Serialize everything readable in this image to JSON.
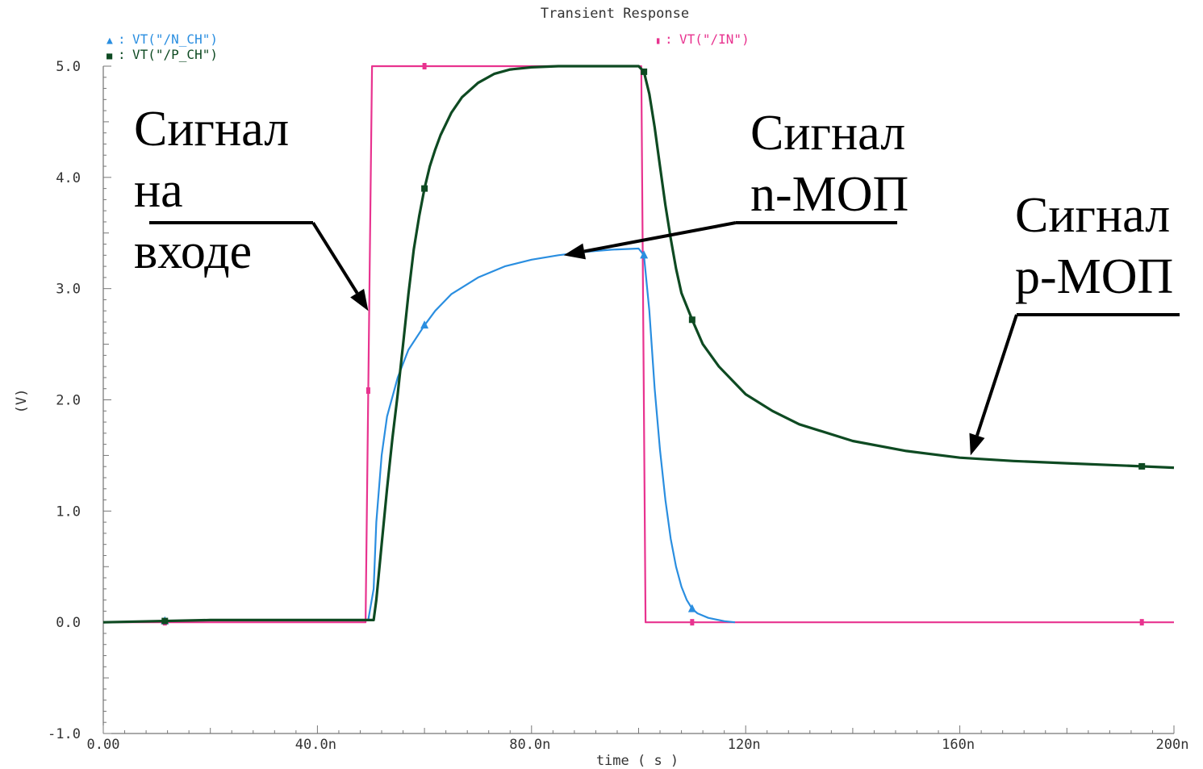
{
  "chart_data": {
    "type": "line",
    "title": "Transient Response",
    "xlabel": "time ( s )",
    "ylabel": "(V)",
    "xlim": [
      0,
      200
    ],
    "ylim": [
      -1.0,
      5.0
    ],
    "x_unit": "ns",
    "x_ticks": [
      {
        "value": 0,
        "label": "0.00"
      },
      {
        "value": 40,
        "label": "40.0n"
      },
      {
        "value": 80,
        "label": "80.0n"
      },
      {
        "value": 120,
        "label": "120n"
      },
      {
        "value": 160,
        "label": "160n"
      },
      {
        "value": 200,
        "label": "200n"
      }
    ],
    "y_ticks": [
      {
        "value": 5,
        "label": "5.0"
      },
      {
        "value": 4,
        "label": "4.0"
      },
      {
        "value": 3,
        "label": "3.0"
      },
      {
        "value": 2,
        "label": "2.0"
      },
      {
        "value": 1,
        "label": "1.0"
      },
      {
        "value": 0,
        "label": "0.0"
      },
      {
        "value": -1,
        "label": "-1.0"
      }
    ],
    "grid": false,
    "series": [
      {
        "name": "VT(\"/N_CH\")",
        "marker_glyph": "▲",
        "color": "#2a8ee0",
        "marker_shape": "triangle",
        "markers_x": [
          11.5,
          60,
          101,
          110
        ],
        "points": [
          [
            0,
            0.0
          ],
          [
            20,
            0.02
          ],
          [
            40,
            0.02
          ],
          [
            49.5,
            0.02
          ],
          [
            50.5,
            0.3
          ],
          [
            51,
            0.9
          ],
          [
            52,
            1.5
          ],
          [
            53,
            1.85
          ],
          [
            55,
            2.2
          ],
          [
            57,
            2.45
          ],
          [
            60,
            2.67
          ],
          [
            62,
            2.8
          ],
          [
            65,
            2.95
          ],
          [
            70,
            3.1
          ],
          [
            75,
            3.2
          ],
          [
            80,
            3.26
          ],
          [
            85,
            3.3
          ],
          [
            90,
            3.33
          ],
          [
            95,
            3.35
          ],
          [
            100,
            3.36
          ],
          [
            101,
            3.3
          ],
          [
            102,
            2.8
          ],
          [
            103,
            2.1
          ],
          [
            104,
            1.55
          ],
          [
            105,
            1.1
          ],
          [
            106,
            0.75
          ],
          [
            107,
            0.5
          ],
          [
            108,
            0.32
          ],
          [
            109,
            0.2
          ],
          [
            110,
            0.12
          ],
          [
            111,
            0.08
          ],
          [
            113,
            0.04
          ],
          [
            116,
            0.01
          ],
          [
            118,
            0.0
          ]
        ]
      },
      {
        "name": "VT(\"/P_CH\")",
        "marker_glyph": "■",
        "color": "#0e4a22",
        "marker_shape": "square",
        "markers_x": [
          11.5,
          60,
          101,
          110,
          194
        ],
        "points": [
          [
            0,
            0.0
          ],
          [
            20,
            0.02
          ],
          [
            40,
            0.02
          ],
          [
            50.5,
            0.02
          ],
          [
            51,
            0.2
          ],
          [
            52,
            0.7
          ],
          [
            53,
            1.2
          ],
          [
            54,
            1.65
          ],
          [
            55,
            2.05
          ],
          [
            56,
            2.5
          ],
          [
            57,
            2.95
          ],
          [
            58,
            3.35
          ],
          [
            59,
            3.65
          ],
          [
            60,
            3.9
          ],
          [
            61,
            4.1
          ],
          [
            62,
            4.25
          ],
          [
            63,
            4.38
          ],
          [
            65,
            4.58
          ],
          [
            67,
            4.72
          ],
          [
            70,
            4.85
          ],
          [
            73,
            4.93
          ],
          [
            76,
            4.97
          ],
          [
            80,
            4.99
          ],
          [
            85,
            5.0
          ],
          [
            90,
            5.0
          ],
          [
            100,
            5.0
          ],
          [
            101,
            4.95
          ],
          [
            102,
            4.75
          ],
          [
            103,
            4.45
          ],
          [
            104,
            4.1
          ],
          [
            105,
            3.75
          ],
          [
            106,
            3.45
          ],
          [
            107,
            3.18
          ],
          [
            108,
            2.96
          ],
          [
            110,
            2.72
          ],
          [
            112,
            2.5
          ],
          [
            115,
            2.3
          ],
          [
            120,
            2.05
          ],
          [
            125,
            1.9
          ],
          [
            130,
            1.78
          ],
          [
            140,
            1.63
          ],
          [
            150,
            1.54
          ],
          [
            160,
            1.48
          ],
          [
            170,
            1.45
          ],
          [
            180,
            1.43
          ],
          [
            190,
            1.41
          ],
          [
            200,
            1.39
          ]
        ]
      },
      {
        "name": "VT(\"/IN\")",
        "marker_glyph": "▮",
        "color": "#e8338f",
        "marker_shape": "bar",
        "markers_x": [
          11.5,
          49.5,
          60,
          110,
          194
        ],
        "points": [
          [
            0,
            0.0
          ],
          [
            49,
            0.0
          ],
          [
            50.2,
            5.0
          ],
          [
            100.5,
            5.0
          ],
          [
            101.3,
            0.0
          ],
          [
            200,
            0.0
          ]
        ]
      }
    ],
    "annotations": [
      {
        "text_lines": [
          "Сигнал",
          "на",
          "входе"
        ],
        "points_to": [
          49.5,
          2.8
        ]
      },
      {
        "text_lines": [
          "Сигнал",
          "n-МОП"
        ],
        "points_to": [
          86,
          3.3
        ]
      },
      {
        "text_lines": [
          "Сигнал",
          "p-МОП"
        ],
        "points_to": [
          162,
          1.5
        ]
      }
    ]
  }
}
